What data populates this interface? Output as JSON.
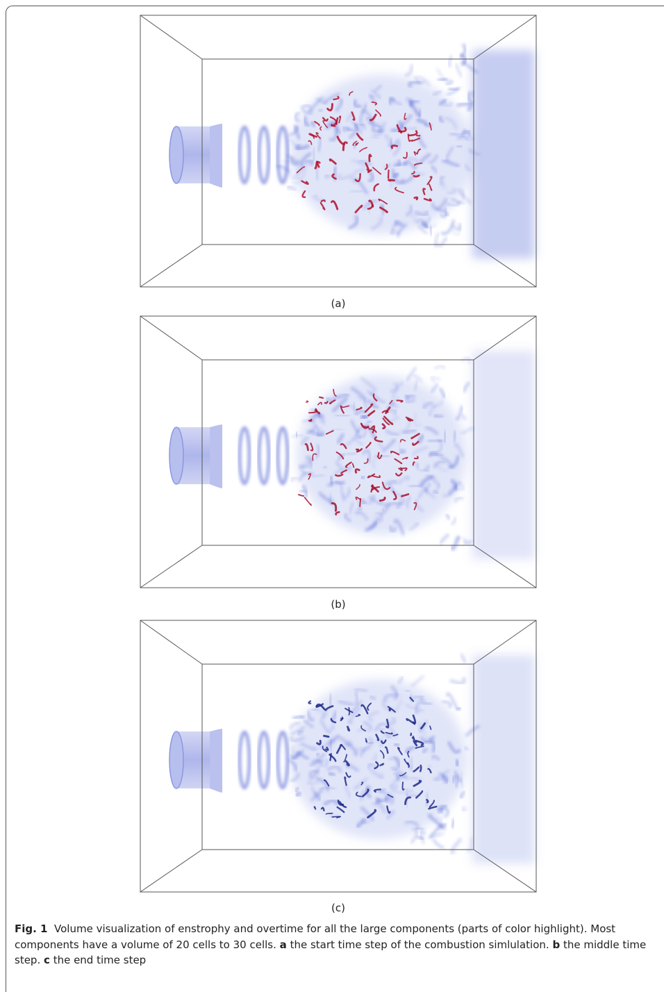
{
  "figure": {
    "panels": [
      {
        "label": "(a)"
      },
      {
        "label": "(b)"
      },
      {
        "label": "(c)"
      }
    ],
    "caption": {
      "label": "Fig. 1",
      "text": "Volume visualization of enstrophy and overtime for all the large components (parts of color highlight). Most components have a volume of 20 cells to 30 cells.",
      "items": [
        {
          "key": "a",
          "text": "the start time step of the combustion simlulation."
        },
        {
          "key": "b",
          "text": "the middle time step."
        },
        {
          "key": "c",
          "text": "the end time step"
        }
      ]
    }
  }
}
